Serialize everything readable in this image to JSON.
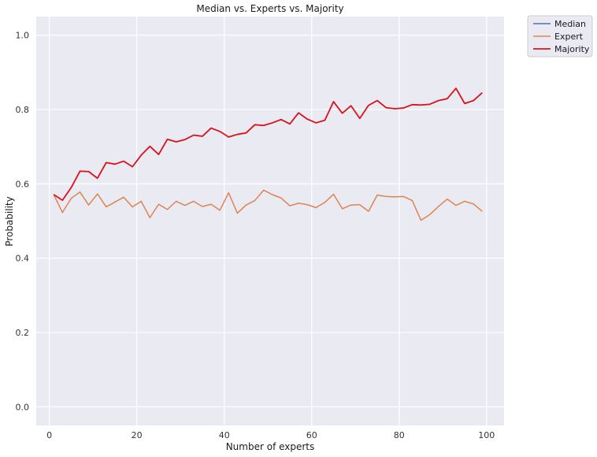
{
  "chart_data": {
    "type": "line",
    "title": "Median vs. Experts vs. Majority",
    "xlabel": "Number of experts",
    "ylabel": "Probability",
    "xlim": [
      -3,
      104
    ],
    "ylim": [
      -0.05,
      1.05
    ],
    "xticks": [
      0,
      20,
      40,
      60,
      80,
      100
    ],
    "yticks": [
      0.0,
      0.2,
      0.4,
      0.6,
      0.8,
      1.0
    ],
    "xtick_labels": [
      "0",
      "20",
      "40",
      "60",
      "80",
      "100"
    ],
    "ytick_labels": [
      "0.0",
      "0.2",
      "0.4",
      "0.6",
      "0.8",
      "1.0"
    ],
    "grid": true,
    "legend_position": "outside-top-right",
    "background": "#eaeaf2",
    "x": [
      1,
      3,
      5,
      7,
      9,
      11,
      13,
      15,
      17,
      19,
      21,
      23,
      25,
      27,
      29,
      31,
      33,
      35,
      37,
      39,
      41,
      43,
      45,
      47,
      49,
      51,
      53,
      55,
      57,
      59,
      61,
      63,
      65,
      67,
      69,
      71,
      73,
      75,
      77,
      79,
      81,
      83,
      85,
      87,
      89,
      91,
      93,
      95,
      97,
      99
    ],
    "series": [
      {
        "name": "Median",
        "color": "#4c72b0",
        "values": [
          0.571,
          0.556,
          0.59,
          0.634,
          0.633,
          0.615,
          0.657,
          0.653,
          0.661,
          0.646,
          0.677,
          0.701,
          0.679,
          0.72,
          0.713,
          0.719,
          0.731,
          0.728,
          0.75,
          0.741,
          0.726,
          0.733,
          0.737,
          0.759,
          0.757,
          0.764,
          0.773,
          0.761,
          0.791,
          0.774,
          0.764,
          0.771,
          0.821,
          0.79,
          0.81,
          0.776,
          0.811,
          0.824,
          0.805,
          0.802,
          0.804,
          0.813,
          0.812,
          0.814,
          0.824,
          0.829,
          0.857,
          0.816,
          0.824,
          0.845
        ]
      },
      {
        "name": "Expert",
        "color": "#dd8452",
        "values": [
          0.571,
          0.523,
          0.561,
          0.578,
          0.543,
          0.573,
          0.538,
          0.551,
          0.564,
          0.538,
          0.553,
          0.509,
          0.545,
          0.531,
          0.553,
          0.542,
          0.553,
          0.539,
          0.545,
          0.529,
          0.576,
          0.521,
          0.543,
          0.555,
          0.583,
          0.571,
          0.562,
          0.541,
          0.548,
          0.544,
          0.536,
          0.55,
          0.572,
          0.533,
          0.543,
          0.544,
          0.526,
          0.57,
          0.566,
          0.565,
          0.566,
          0.555,
          0.502,
          0.517,
          0.539,
          0.559,
          0.542,
          0.553,
          0.546,
          0.526
        ]
      },
      {
        "name": "Majority",
        "color": "#dc141c",
        "values": [
          0.571,
          0.556,
          0.59,
          0.634,
          0.633,
          0.615,
          0.657,
          0.653,
          0.661,
          0.646,
          0.677,
          0.701,
          0.679,
          0.72,
          0.713,
          0.719,
          0.731,
          0.728,
          0.75,
          0.741,
          0.726,
          0.733,
          0.737,
          0.759,
          0.757,
          0.764,
          0.773,
          0.761,
          0.791,
          0.774,
          0.764,
          0.771,
          0.821,
          0.79,
          0.81,
          0.776,
          0.811,
          0.824,
          0.805,
          0.802,
          0.804,
          0.813,
          0.812,
          0.814,
          0.824,
          0.829,
          0.857,
          0.816,
          0.824,
          0.845
        ]
      }
    ]
  }
}
